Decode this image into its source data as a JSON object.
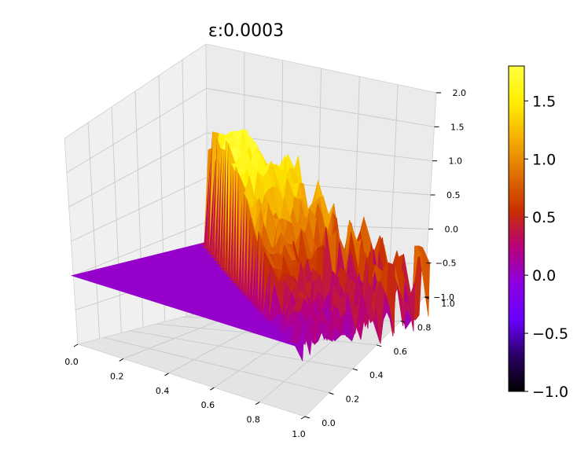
{
  "chart_data": {
    "type": "surface3d",
    "title": "ε:0.0003",
    "xlabel": "",
    "ylabel": "",
    "zlabel": "",
    "x_ticks": [
      "0.0",
      "0.2",
      "0.4",
      "0.6",
      "0.8",
      "1.0"
    ],
    "y_ticks": [
      "0.0",
      "0.2",
      "0.4",
      "0.6",
      "0.8",
      "1.0"
    ],
    "z_ticks": [
      "−1.0",
      "−0.5",
      "0.0",
      "0.5",
      "1.0",
      "1.5",
      "2.0"
    ],
    "xlim": [
      0,
      1
    ],
    "ylim": [
      0,
      1
    ],
    "zlim": [
      -1,
      2
    ],
    "grid": true,
    "surface": {
      "flat_region": "x + y < 1, z = 0",
      "rough_region": "x + y >= 1, noisy z",
      "z_range_observed": [
        -1.0,
        1.8
      ],
      "colormap": "gnuplot"
    },
    "colorbar": {
      "range": [
        -1.0,
        1.8
      ],
      "ticks": [
        "1.5",
        "1.0",
        "0.5",
        "0.0",
        "−0.5",
        "−1.0"
      ],
      "tick_values": [
        1.5,
        1.0,
        0.5,
        0.0,
        -0.5,
        -1.0
      ],
      "colors": [
        "#000000",
        "#2b0066",
        "#6a00ff",
        "#8c00e0",
        "#b8007a",
        "#c83000",
        "#e07000",
        "#f5b000",
        "#ffef00",
        "#ffff40"
      ]
    }
  }
}
